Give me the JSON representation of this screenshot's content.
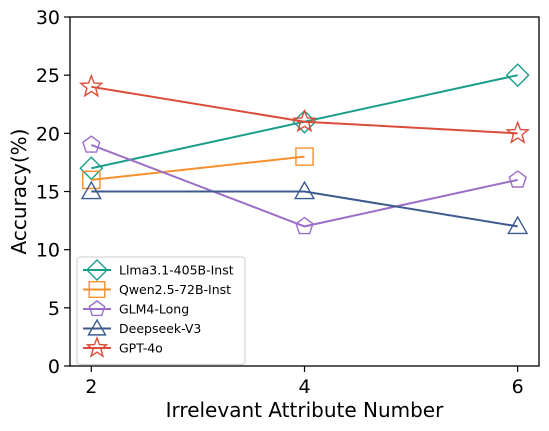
{
  "chart_data": {
    "type": "line",
    "title": "",
    "xlabel": "Irrelevant Attribute Number",
    "ylabel": "Accuracy(%)",
    "xticks": [
      2,
      4,
      6
    ],
    "yticks": [
      0,
      5,
      10,
      15,
      20,
      25,
      30
    ],
    "ylim": [
      0,
      30
    ],
    "xlim": [
      1.8,
      6.2
    ],
    "grid": false,
    "legend_position": "lower-left",
    "series": [
      {
        "name": "Llma3.1-405B-Inst",
        "color": "#1a9e8a",
        "marker": "diamond",
        "x": [
          2,
          4,
          6
        ],
        "values": [
          17,
          21,
          25
        ]
      },
      {
        "name": "Qwen2.5-72B-Inst",
        "color": "#f5902d",
        "marker": "square",
        "x": [
          2,
          4
        ],
        "values": [
          16,
          18
        ]
      },
      {
        "name": "GLM4-Long",
        "color": "#9b6fc9",
        "marker": "pentagon",
        "x": [
          2,
          4,
          6
        ],
        "values": [
          19,
          12,
          16
        ]
      },
      {
        "name": "Deepseek-V3",
        "color": "#3d5a8f",
        "marker": "triangle",
        "x": [
          2,
          4,
          6
        ],
        "values": [
          15,
          15,
          12
        ]
      },
      {
        "name": "GPT-4o",
        "color": "#d94d3a",
        "marker": "star",
        "x": [
          2,
          4,
          6
        ],
        "values": [
          24,
          21,
          20
        ]
      }
    ]
  }
}
